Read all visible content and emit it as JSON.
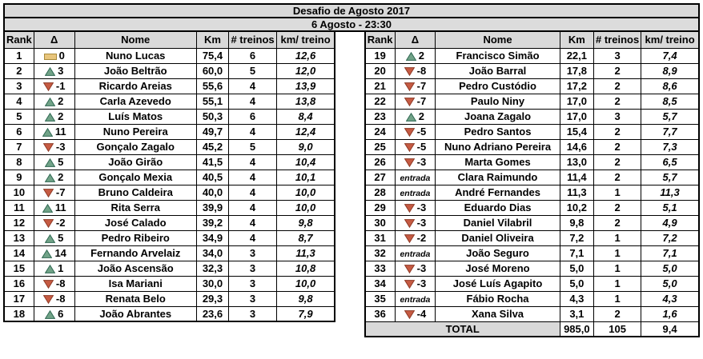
{
  "title": "Desafio de Agosto 2017",
  "subtitle": "6 Agosto - 23:30",
  "columns": [
    "Rank",
    "Δ",
    "Nome",
    "Km",
    "# treinos",
    "km/ treino"
  ],
  "colors": {
    "border": "#000000",
    "header_bg": "#d9d9d9",
    "subtitle_bg": "#dcdcdc",
    "up_fill": "#71a388",
    "up_border": "#2f6852",
    "down_fill": "#c65b43",
    "down_border": "#8f3a26",
    "equal_fill": "#e8c57c",
    "equal_border": "#a98b3c"
  },
  "tables": {
    "left": {
      "rows": [
        {
          "rank": "1",
          "trend": "equal",
          "delta": "0",
          "nome": "Nuno Lucas",
          "km": "75,4",
          "treinos": "6",
          "km_treino": "12,6"
        },
        {
          "rank": "2",
          "trend": "up",
          "delta": "3",
          "nome": "João Beltrão",
          "km": "60,0",
          "treinos": "5",
          "km_treino": "12,0"
        },
        {
          "rank": "3",
          "trend": "down",
          "delta": "-1",
          "nome": "Ricardo Areias",
          "km": "55,6",
          "treinos": "4",
          "km_treino": "13,9"
        },
        {
          "rank": "4",
          "trend": "up",
          "delta": "2",
          "nome": "Carla Azevedo",
          "km": "55,1",
          "treinos": "4",
          "km_treino": "13,8"
        },
        {
          "rank": "5",
          "trend": "up",
          "delta": "2",
          "nome": "Luís Matos",
          "km": "50,3",
          "treinos": "6",
          "km_treino": "8,4"
        },
        {
          "rank": "6",
          "trend": "up",
          "delta": "11",
          "nome": "Nuno Pereira",
          "km": "49,7",
          "treinos": "4",
          "km_treino": "12,4"
        },
        {
          "rank": "7",
          "trend": "down",
          "delta": "-3",
          "nome": "Gonçalo Zagalo",
          "km": "45,2",
          "treinos": "5",
          "km_treino": "9,0"
        },
        {
          "rank": "8",
          "trend": "up",
          "delta": "5",
          "nome": "João Girão",
          "km": "41,5",
          "treinos": "4",
          "km_treino": "10,4"
        },
        {
          "rank": "9",
          "trend": "up",
          "delta": "2",
          "nome": "Gonçalo Mexia",
          "km": "40,5",
          "treinos": "4",
          "km_treino": "10,1"
        },
        {
          "rank": "10",
          "trend": "down",
          "delta": "-7",
          "nome": "Bruno Caldeira",
          "km": "40,0",
          "treinos": "4",
          "km_treino": "10,0"
        },
        {
          "rank": "11",
          "trend": "up",
          "delta": "11",
          "nome": "Rita Serra",
          "km": "39,9",
          "treinos": "4",
          "km_treino": "10,0"
        },
        {
          "rank": "12",
          "trend": "down",
          "delta": "-2",
          "nome": "José Calado",
          "km": "39,2",
          "treinos": "4",
          "km_treino": "9,8"
        },
        {
          "rank": "13",
          "trend": "up",
          "delta": "5",
          "nome": "Pedro Ribeiro",
          "km": "34,9",
          "treinos": "4",
          "km_treino": "8,7"
        },
        {
          "rank": "14",
          "trend": "up",
          "delta": "14",
          "nome": "Fernando Arvelaiz",
          "km": "34,0",
          "treinos": "3",
          "km_treino": "11,3"
        },
        {
          "rank": "15",
          "trend": "up",
          "delta": "1",
          "nome": "João Ascensão",
          "km": "32,3",
          "treinos": "3",
          "km_treino": "10,8"
        },
        {
          "rank": "16",
          "trend": "down",
          "delta": "-8",
          "nome": "Isa Mariani",
          "km": "30,0",
          "treinos": "3",
          "km_treino": "10,0"
        },
        {
          "rank": "17",
          "trend": "down",
          "delta": "-8",
          "nome": "Renata Belo",
          "km": "29,3",
          "treinos": "3",
          "km_treino": "9,8"
        },
        {
          "rank": "18",
          "trend": "up",
          "delta": "6",
          "nome": "João Abrantes",
          "km": "23,6",
          "treinos": "3",
          "km_treino": "7,9"
        }
      ]
    },
    "right": {
      "rows": [
        {
          "rank": "19",
          "trend": "up",
          "delta": "2",
          "nome": "Francisco Simão",
          "km": "22,1",
          "treinos": "3",
          "km_treino": "7,4"
        },
        {
          "rank": "20",
          "trend": "down",
          "delta": "-8",
          "nome": "João Barral",
          "km": "17,8",
          "treinos": "2",
          "km_treino": "8,9"
        },
        {
          "rank": "21",
          "trend": "down",
          "delta": "-7",
          "nome": "Pedro Custódio",
          "km": "17,2",
          "treinos": "2",
          "km_treino": "8,6"
        },
        {
          "rank": "22",
          "trend": "down",
          "delta": "-7",
          "nome": "Paulo Niny",
          "km": "17,0",
          "treinos": "2",
          "km_treino": "8,5"
        },
        {
          "rank": "23",
          "trend": "up",
          "delta": "2",
          "nome": "Joana Zagalo",
          "km": "17,0",
          "treinos": "3",
          "km_treino": "5,7"
        },
        {
          "rank": "24",
          "trend": "down",
          "delta": "-5",
          "nome": "Pedro Santos",
          "km": "15,4",
          "treinos": "2",
          "km_treino": "7,7"
        },
        {
          "rank": "25",
          "trend": "down",
          "delta": "-5",
          "nome": "Nuno Adriano Pereira",
          "km": "14,6",
          "treinos": "2",
          "km_treino": "7,3"
        },
        {
          "rank": "26",
          "trend": "down",
          "delta": "-3",
          "nome": "Marta Gomes",
          "km": "13,0",
          "treinos": "2",
          "km_treino": "6,5"
        },
        {
          "rank": "27",
          "trend": "entrada",
          "delta": "entrada",
          "nome": "Clara Raimundo",
          "km": "11,4",
          "treinos": "2",
          "km_treino": "5,7"
        },
        {
          "rank": "28",
          "trend": "entrada",
          "delta": "entrada",
          "nome": "André Fernandes",
          "km": "11,3",
          "treinos": "1",
          "km_treino": "11,3"
        },
        {
          "rank": "29",
          "trend": "down",
          "delta": "-3",
          "nome": "Eduardo Dias",
          "km": "10,2",
          "treinos": "2",
          "km_treino": "5,1"
        },
        {
          "rank": "30",
          "trend": "down",
          "delta": "-3",
          "nome": "Daniel Vilabril",
          "km": "9,8",
          "treinos": "2",
          "km_treino": "4,9"
        },
        {
          "rank": "31",
          "trend": "down",
          "delta": "-2",
          "nome": "Daniel Oliveira",
          "km": "7,2",
          "treinos": "1",
          "km_treino": "7,2"
        },
        {
          "rank": "32",
          "trend": "entrada",
          "delta": "entrada",
          "nome": "João Seguro",
          "km": "7,1",
          "treinos": "1",
          "km_treino": "7,1"
        },
        {
          "rank": "33",
          "trend": "down",
          "delta": "-3",
          "nome": "José Moreno",
          "km": "5,0",
          "treinos": "1",
          "km_treino": "5,0"
        },
        {
          "rank": "34",
          "trend": "down",
          "delta": "-3",
          "nome": "José Luís Agapito",
          "km": "5,0",
          "treinos": "1",
          "km_treino": "5,0"
        },
        {
          "rank": "35",
          "trend": "entrada",
          "delta": "entrada",
          "nome": "Fábio Rocha",
          "km": "4,3",
          "treinos": "1",
          "km_treino": "4,3"
        },
        {
          "rank": "36",
          "trend": "down",
          "delta": "-4",
          "nome": "Xana Silva",
          "km": "3,1",
          "treinos": "2",
          "km_treino": "1,6"
        }
      ],
      "total": {
        "label": "TOTAL",
        "km": "985,0",
        "treinos": "105",
        "km_treino": "9,4"
      }
    }
  }
}
